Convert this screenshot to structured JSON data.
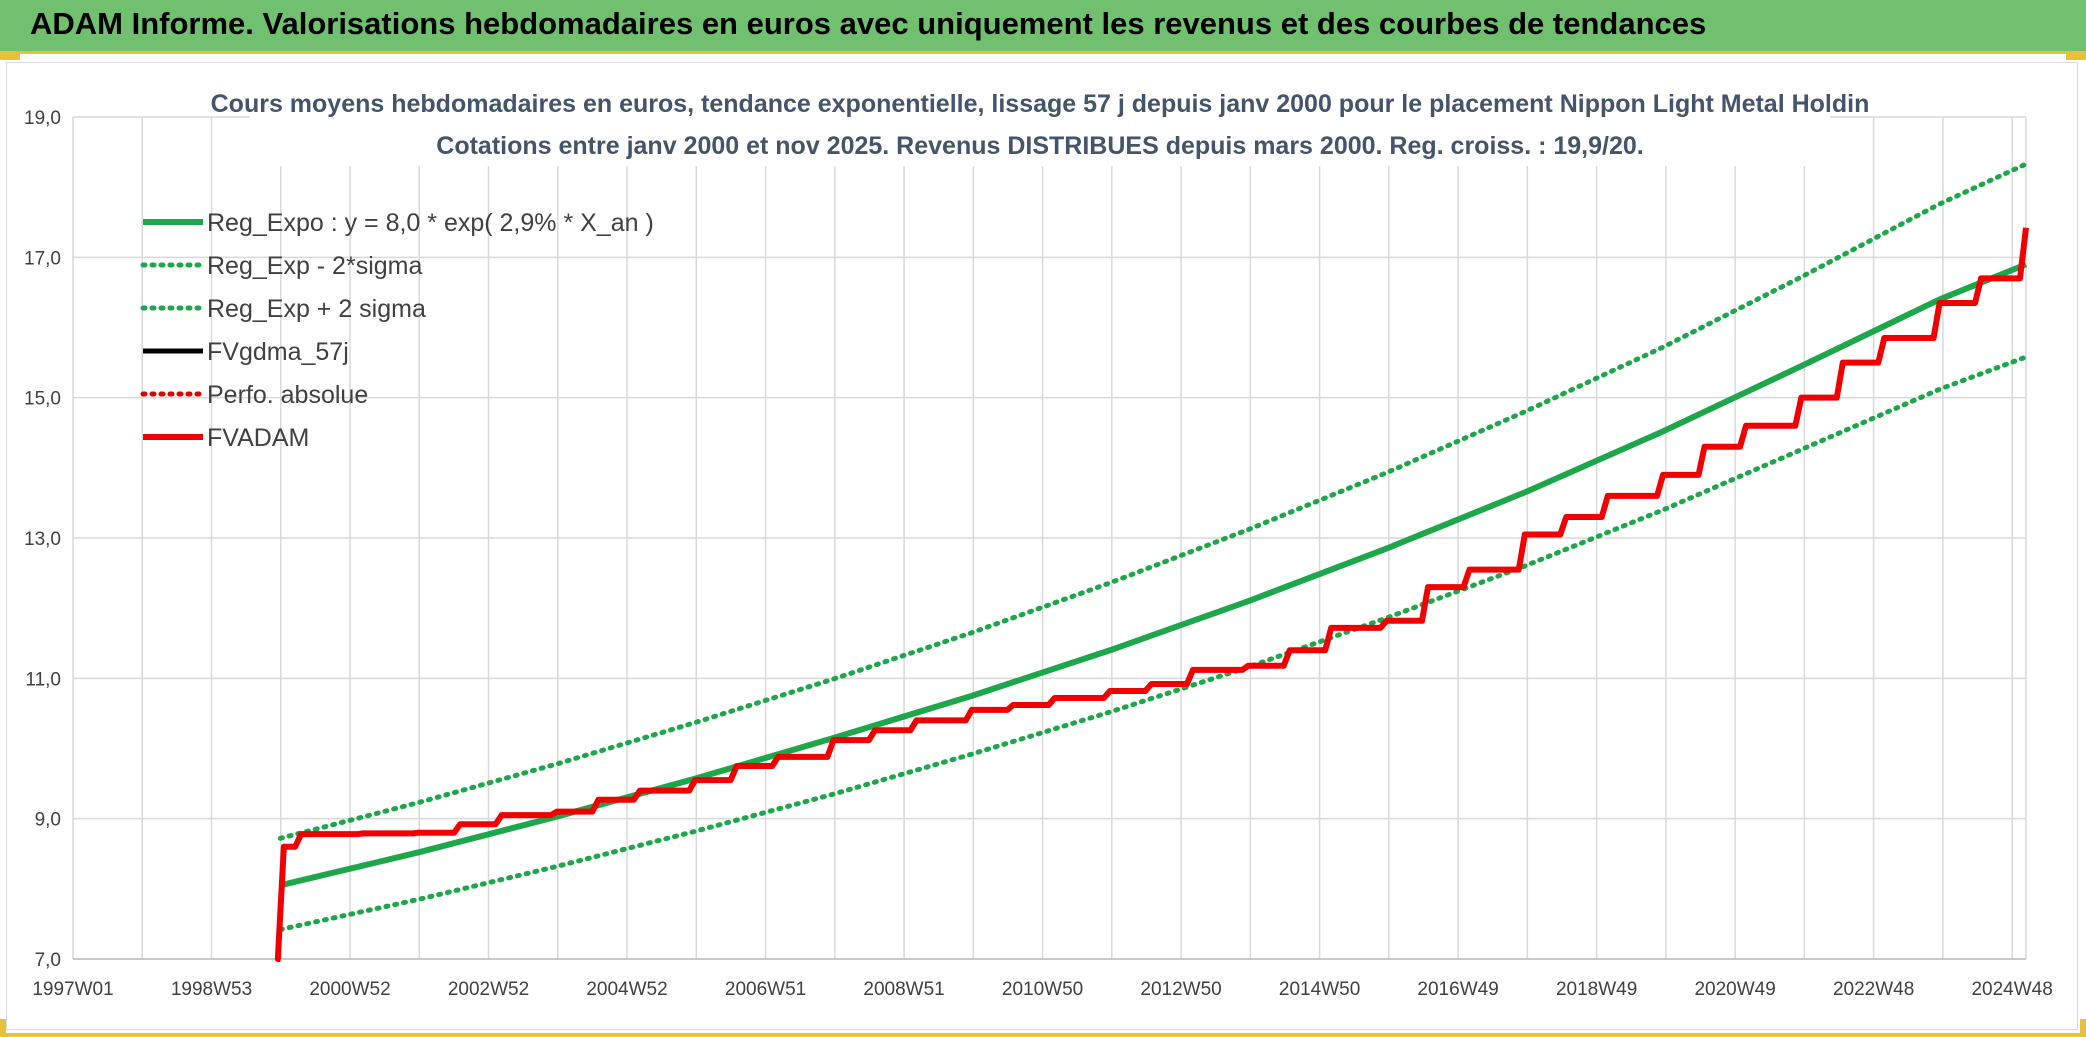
{
  "header": {
    "title": "ADAM Informe. Valorisations hebdomadaires en euros avec uniquement les revenus et des courbes de tendances"
  },
  "chart_data": {
    "type": "line",
    "title_line1": "Cours moyens hebdomadaires en euros, tendance exponentielle, lissage 57 j depuis janv 2000 pour le placement Nippon Light Metal Holdin",
    "title_line2": "Cotations entre janv 2000 et nov 2025. Revenus DISTRIBUES depuis mars 2000. Reg. croiss. : 19,9/20.",
    "xlabel": "",
    "ylabel": "",
    "ylim": [
      7.0,
      19.0
    ],
    "xlim": [
      1997.0,
      2025.25
    ],
    "y_ticks": [
      "7,0",
      "9,0",
      "11,0",
      "13,0",
      "15,0",
      "17,0",
      "19,0"
    ],
    "x_ticks": [
      "1997W01",
      "1998W53",
      "2000W52",
      "2002W52",
      "2004W52",
      "2006W51",
      "2008W51",
      "2010W50",
      "2012W50",
      "2014W50",
      "2016W49",
      "2018W49",
      "2020W49",
      "2022W48",
      "2024W48"
    ],
    "grid": true,
    "legend_position": "top-left",
    "series": [
      {
        "name": "Reg_Expo : y = 8,0 * exp( 2,9% *  X_an )",
        "color": "#1ea64b",
        "style": "solid",
        "x": [
          2000.0,
          2002.0,
          2004.0,
          2006.0,
          2008.0,
          2010.0,
          2012.0,
          2014.0,
          2016.0,
          2018.0,
          2020.0,
          2022.0,
          2024.0,
          2025.25
        ],
        "y": [
          8.05,
          8.52,
          9.03,
          9.57,
          10.15,
          10.75,
          11.4,
          12.1,
          12.85,
          13.65,
          14.52,
          15.45,
          16.4,
          16.9
        ]
      },
      {
        "name": "Reg_Exp - 2*sigma",
        "color": "#1ea64b",
        "style": "dotted",
        "x": [
          2000.0,
          2002.0,
          2004.0,
          2006.0,
          2008.0,
          2010.0,
          2012.0,
          2014.0,
          2016.0,
          2018.0,
          2020.0,
          2022.0,
          2024.0,
          2025.25
        ],
        "y": [
          7.42,
          7.85,
          8.32,
          8.82,
          9.35,
          9.92,
          10.52,
          11.16,
          11.86,
          12.6,
          13.4,
          14.26,
          15.12,
          15.58
        ]
      },
      {
        "name": "Reg_Exp + 2 sigma",
        "color": "#1ea64b",
        "style": "dotted",
        "x": [
          2000.0,
          2002.0,
          2004.0,
          2006.0,
          2008.0,
          2010.0,
          2012.0,
          2014.0,
          2016.0,
          2018.0,
          2020.0,
          2022.0,
          2024.0,
          2025.25
        ],
        "y": [
          8.72,
          9.23,
          9.78,
          10.37,
          10.99,
          11.65,
          12.36,
          13.12,
          13.93,
          14.8,
          15.72,
          16.72,
          17.76,
          18.33
        ]
      },
      {
        "name": "FVgdma_57j",
        "color": "#000000",
        "style": "solid",
        "x": [
          2000.0,
          2000.05,
          2000.3,
          2001.2,
          2002.0,
          2002.6,
          2003.2,
          2004.0,
          2004.6,
          2005.2,
          2006.0,
          2006.6,
          2007.2,
          2008.0,
          2008.6,
          2009.2,
          2010.0,
          2010.6,
          2011.2,
          2012.0,
          2012.6,
          2013.2,
          2014.0,
          2014.6,
          2015.2,
          2016.0,
          2016.6,
          2017.2,
          2018.0,
          2018.6,
          2019.2,
          2020.0,
          2020.6,
          2021.2,
          2022.0,
          2022.6,
          2023.2,
          2024.0,
          2024.6,
          2025.25
        ],
        "y": [
          7.0,
          8.6,
          8.78,
          8.79,
          8.8,
          8.92,
          9.05,
          9.1,
          9.27,
          9.4,
          9.55,
          9.75,
          9.88,
          10.12,
          10.26,
          10.4,
          10.55,
          10.62,
          10.72,
          10.82,
          10.92,
          11.12,
          11.18,
          11.4,
          11.72,
          11.82,
          12.3,
          12.55,
          13.05,
          13.3,
          13.6,
          13.9,
          14.3,
          14.6,
          15.0,
          15.5,
          15.85,
          16.35,
          16.7,
          17.42
        ]
      },
      {
        "name": "Perfo. absolue",
        "color": "#e00000",
        "style": "dotted",
        "x": [],
        "y": []
      },
      {
        "name": "FVADAM",
        "color": "#f00000",
        "style": "solid",
        "x": [
          2000.0,
          2000.05,
          2000.3,
          2001.2,
          2002.0,
          2002.6,
          2003.2,
          2004.0,
          2004.6,
          2005.2,
          2006.0,
          2006.6,
          2007.2,
          2008.0,
          2008.6,
          2009.2,
          2010.0,
          2010.6,
          2011.2,
          2012.0,
          2012.6,
          2013.2,
          2014.0,
          2014.6,
          2015.2,
          2016.0,
          2016.6,
          2017.2,
          2018.0,
          2018.6,
          2019.2,
          2020.0,
          2020.6,
          2021.2,
          2022.0,
          2022.6,
          2023.2,
          2024.0,
          2024.6,
          2025.25
        ],
        "y": [
          7.0,
          8.6,
          8.78,
          8.79,
          8.8,
          8.92,
          9.05,
          9.1,
          9.27,
          9.4,
          9.55,
          9.75,
          9.88,
          10.12,
          10.26,
          10.4,
          10.55,
          10.62,
          10.72,
          10.82,
          10.92,
          11.12,
          11.18,
          11.4,
          11.72,
          11.82,
          12.3,
          12.55,
          13.05,
          13.3,
          13.6,
          13.9,
          14.3,
          14.6,
          15.0,
          15.5,
          15.85,
          16.35,
          16.7,
          17.42
        ]
      }
    ]
  }
}
